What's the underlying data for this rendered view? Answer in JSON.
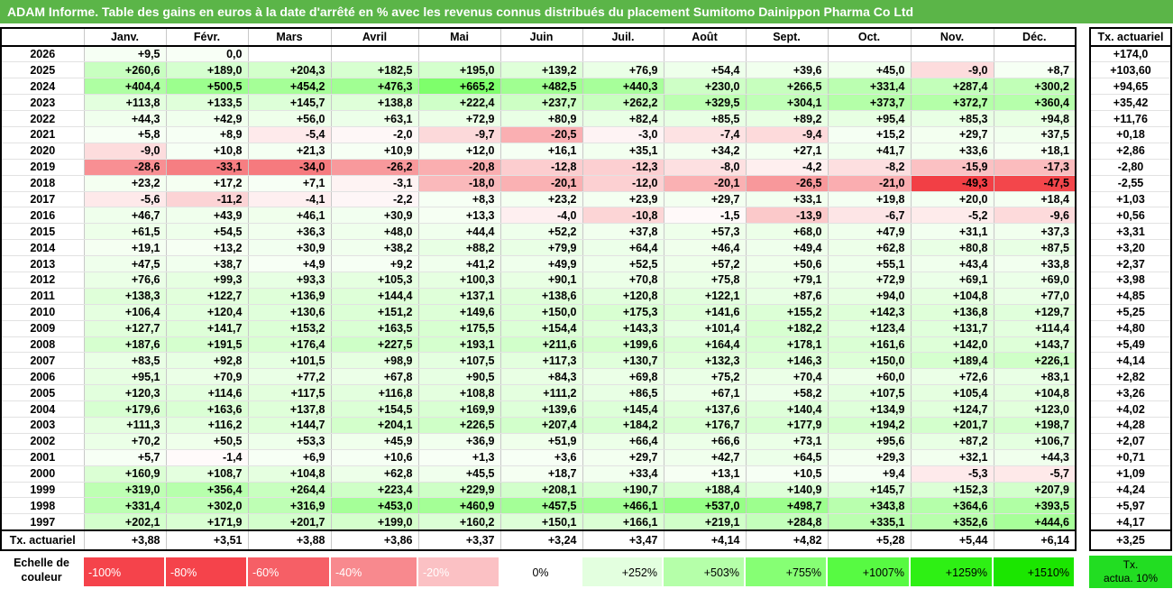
{
  "title": "ADAM Informe. Table des gains en euros à la date d'arrêté en % avec les revenus connus distribués du placement Sumitomo Dainippon Pharma Co Ltd",
  "months": [
    "Janv.",
    "Févr.",
    "Mars",
    "Avril",
    "Mai",
    "Juin",
    "Juil.",
    "Août",
    "Sept.",
    "Oct.",
    "Nov.",
    "Déc."
  ],
  "side_header": "Tx. actuariel",
  "rows": [
    {
      "year": "2026",
      "values": [
        "+9,5",
        "0,0",
        "",
        "",
        "",
        "",
        "",
        "",
        "",
        "",
        "",
        ""
      ],
      "actuarial": "+174,0"
    },
    {
      "year": "2025",
      "values": [
        "+260,6",
        "+189,0",
        "+204,3",
        "+182,5",
        "+195,0",
        "+139,2",
        "+76,9",
        "+54,4",
        "+39,6",
        "+45,0",
        "-9,0",
        "+8,7"
      ],
      "actuarial": "+103,60"
    },
    {
      "year": "2024",
      "values": [
        "+404,4",
        "+500,5",
        "+454,2",
        "+476,3",
        "+665,2",
        "+482,5",
        "+440,3",
        "+230,0",
        "+266,5",
        "+331,4",
        "+287,4",
        "+300,2"
      ],
      "actuarial": "+94,65"
    },
    {
      "year": "2023",
      "values": [
        "+113,8",
        "+133,5",
        "+145,7",
        "+138,8",
        "+222,4",
        "+237,7",
        "+262,2",
        "+329,5",
        "+304,1",
        "+373,7",
        "+372,7",
        "+360,4"
      ],
      "actuarial": "+35,42"
    },
    {
      "year": "2022",
      "values": [
        "+44,3",
        "+42,9",
        "+56,0",
        "+63,1",
        "+72,9",
        "+80,9",
        "+82,4",
        "+85,5",
        "+89,2",
        "+95,4",
        "+85,3",
        "+94,8"
      ],
      "actuarial": "+11,76"
    },
    {
      "year": "2021",
      "values": [
        "+5,8",
        "+8,9",
        "-5,4",
        "-2,0",
        "-9,7",
        "-20,5",
        "-3,0",
        "-7,4",
        "-9,4",
        "+15,2",
        "+29,7",
        "+37,5"
      ],
      "actuarial": "+0,18"
    },
    {
      "year": "2020",
      "values": [
        "-9,0",
        "+10,8",
        "+21,3",
        "+10,9",
        "+12,0",
        "+16,1",
        "+35,1",
        "+34,2",
        "+27,1",
        "+41,7",
        "+33,6",
        "+18,1"
      ],
      "actuarial": "+2,86"
    },
    {
      "year": "2019",
      "values": [
        "-28,6",
        "-33,1",
        "-34,0",
        "-26,2",
        "-20,8",
        "-12,8",
        "-12,3",
        "-8,0",
        "-4,2",
        "-8,2",
        "-15,9",
        "-17,3"
      ],
      "actuarial": "-2,80"
    },
    {
      "year": "2018",
      "values": [
        "+23,2",
        "+17,2",
        "+7,1",
        "-3,1",
        "-18,0",
        "-20,1",
        "-12,0",
        "-20,1",
        "-26,5",
        "-21,0",
        "-49,3",
        "-47,5"
      ],
      "actuarial": "-2,55"
    },
    {
      "year": "2017",
      "values": [
        "-5,6",
        "-11,2",
        "-4,1",
        "-2,2",
        "+8,3",
        "+23,2",
        "+23,9",
        "+29,7",
        "+33,1",
        "+19,8",
        "+20,0",
        "+18,4"
      ],
      "actuarial": "+1,03"
    },
    {
      "year": "2016",
      "values": [
        "+46,7",
        "+43,9",
        "+46,1",
        "+30,9",
        "+13,3",
        "-4,0",
        "-10,8",
        "-1,5",
        "-13,9",
        "-6,7",
        "-5,2",
        "-9,6"
      ],
      "actuarial": "+0,56"
    },
    {
      "year": "2015",
      "values": [
        "+61,5",
        "+54,5",
        "+36,3",
        "+48,0",
        "+44,4",
        "+52,2",
        "+37,8",
        "+57,3",
        "+68,0",
        "+47,9",
        "+31,1",
        "+37,3"
      ],
      "actuarial": "+3,31"
    },
    {
      "year": "2014",
      "values": [
        "+19,1",
        "+13,2",
        "+30,9",
        "+38,2",
        "+88,2",
        "+79,9",
        "+64,4",
        "+46,4",
        "+49,4",
        "+62,8",
        "+80,8",
        "+87,5"
      ],
      "actuarial": "+3,20"
    },
    {
      "year": "2013",
      "values": [
        "+47,5",
        "+38,7",
        "+4,9",
        "+9,2",
        "+41,2",
        "+49,9",
        "+52,5",
        "+57,2",
        "+50,6",
        "+55,1",
        "+43,4",
        "+33,8"
      ],
      "actuarial": "+2,37"
    },
    {
      "year": "2012",
      "values": [
        "+76,6",
        "+99,3",
        "+93,3",
        "+105,3",
        "+100,3",
        "+90,1",
        "+70,8",
        "+75,8",
        "+79,1",
        "+72,9",
        "+69,1",
        "+69,0"
      ],
      "actuarial": "+3,98"
    },
    {
      "year": "2011",
      "values": [
        "+138,3",
        "+122,7",
        "+136,9",
        "+144,4",
        "+137,1",
        "+138,6",
        "+120,8",
        "+122,1",
        "+87,6",
        "+94,0",
        "+104,8",
        "+77,0"
      ],
      "actuarial": "+4,85"
    },
    {
      "year": "2010",
      "values": [
        "+106,4",
        "+120,4",
        "+130,6",
        "+151,2",
        "+149,6",
        "+150,0",
        "+175,3",
        "+141,6",
        "+155,2",
        "+142,3",
        "+136,8",
        "+129,7"
      ],
      "actuarial": "+5,25"
    },
    {
      "year": "2009",
      "values": [
        "+127,7",
        "+141,7",
        "+153,2",
        "+163,5",
        "+175,5",
        "+154,4",
        "+143,3",
        "+101,4",
        "+182,2",
        "+123,4",
        "+131,7",
        "+114,4"
      ],
      "actuarial": "+4,80"
    },
    {
      "year": "2008",
      "values": [
        "+187,6",
        "+191,5",
        "+176,4",
        "+227,5",
        "+193,1",
        "+211,6",
        "+199,6",
        "+164,4",
        "+178,1",
        "+161,6",
        "+142,0",
        "+143,7"
      ],
      "actuarial": "+5,49"
    },
    {
      "year": "2007",
      "values": [
        "+83,5",
        "+92,8",
        "+101,5",
        "+98,9",
        "+107,5",
        "+117,3",
        "+130,7",
        "+132,3",
        "+146,3",
        "+150,0",
        "+189,4",
        "+226,1"
      ],
      "actuarial": "+4,14"
    },
    {
      "year": "2006",
      "values": [
        "+95,1",
        "+70,9",
        "+77,2",
        "+67,8",
        "+90,5",
        "+84,3",
        "+69,8",
        "+75,2",
        "+70,4",
        "+60,0",
        "+72,6",
        "+83,1"
      ],
      "actuarial": "+2,82"
    },
    {
      "year": "2005",
      "values": [
        "+120,3",
        "+114,6",
        "+117,5",
        "+116,8",
        "+108,8",
        "+111,2",
        "+86,5",
        "+67,1",
        "+58,2",
        "+107,5",
        "+105,4",
        "+104,8"
      ],
      "actuarial": "+3,26"
    },
    {
      "year": "2004",
      "values": [
        "+179,6",
        "+163,6",
        "+137,8",
        "+154,5",
        "+169,9",
        "+139,6",
        "+145,4",
        "+137,6",
        "+140,4",
        "+134,9",
        "+124,7",
        "+123,0"
      ],
      "actuarial": "+4,02"
    },
    {
      "year": "2003",
      "values": [
        "+111,3",
        "+116,2",
        "+144,7",
        "+204,1",
        "+226,5",
        "+207,4",
        "+184,2",
        "+176,7",
        "+177,9",
        "+194,2",
        "+201,7",
        "+198,7"
      ],
      "actuarial": "+4,28"
    },
    {
      "year": "2002",
      "values": [
        "+70,2",
        "+50,5",
        "+53,3",
        "+45,9",
        "+36,9",
        "+51,9",
        "+66,4",
        "+66,6",
        "+73,1",
        "+95,6",
        "+87,2",
        "+106,7"
      ],
      "actuarial": "+2,07"
    },
    {
      "year": "2001",
      "values": [
        "+5,7",
        "-1,4",
        "+6,9",
        "+10,6",
        "+1,3",
        "+3,6",
        "+29,7",
        "+42,7",
        "+64,5",
        "+29,3",
        "+32,1",
        "+44,3"
      ],
      "actuarial": "+0,71"
    },
    {
      "year": "2000",
      "values": [
        "+160,9",
        "+108,7",
        "+104,8",
        "+62,8",
        "+45,5",
        "+18,7",
        "+33,4",
        "+13,1",
        "+10,5",
        "+9,4",
        "-5,3",
        "-5,7"
      ],
      "actuarial": "+1,09"
    },
    {
      "year": "1999",
      "values": [
        "+319,0",
        "+356,4",
        "+264,4",
        "+223,4",
        "+229,9",
        "+208,1",
        "+190,7",
        "+188,4",
        "+140,9",
        "+145,7",
        "+152,3",
        "+207,9"
      ],
      "actuarial": "+4,24"
    },
    {
      "year": "1998",
      "values": [
        "+331,4",
        "+302,0",
        "+316,9",
        "+453,0",
        "+460,9",
        "+457,5",
        "+466,1",
        "+537,0",
        "+498,7",
        "+343,8",
        "+364,6",
        "+393,5"
      ],
      "actuarial": "+5,97"
    },
    {
      "year": "1997",
      "values": [
        "+202,1",
        "+171,9",
        "+201,7",
        "+199,0",
        "+160,2",
        "+150,1",
        "+166,1",
        "+219,1",
        "+284,8",
        "+335,1",
        "+352,6",
        "+444,6"
      ],
      "actuarial": "+4,17"
    }
  ],
  "footer": {
    "label": "Tx. actuariel",
    "values": [
      "+3,88",
      "+3,51",
      "+3,88",
      "+3,86",
      "+3,37",
      "+3,24",
      "+3,47",
      "+4,14",
      "+4,82",
      "+5,28",
      "+5,44",
      "+6,14"
    ],
    "actuarial": "+3,25"
  },
  "legend": {
    "label_line1": "Echelle de",
    "label_line2": "couleur",
    "cells": [
      {
        "text": "-100%",
        "color": "#f5434b",
        "text_color": "#ffffff",
        "align": "left"
      },
      {
        "text": "-80%",
        "color": "#f5434b",
        "text_color": "#ffffff",
        "align": "left"
      },
      {
        "text": "-60%",
        "color": "#f65f66",
        "text_color": "#ffffff",
        "align": "left"
      },
      {
        "text": "-40%",
        "color": "#f8898e",
        "text_color": "#ffffff",
        "align": "left"
      },
      {
        "text": "-20%",
        "color": "#fbc1c4",
        "text_color": "#ffffff",
        "align": "left"
      },
      {
        "text": "0%",
        "color": "#ffffff",
        "text_color": "#000000",
        "align": "center"
      },
      {
        "text": "+252%",
        "color": "#e3ffdf",
        "text_color": "#000000",
        "align": "right"
      },
      {
        "text": "+503%",
        "color": "#b5ffa9",
        "text_color": "#000000",
        "align": "right"
      },
      {
        "text": "+755%",
        "color": "#86ff74",
        "text_color": "#000000",
        "align": "right"
      },
      {
        "text": "+1007%",
        "color": "#57fa42",
        "text_color": "#000000",
        "align": "right"
      },
      {
        "text": "+1259%",
        "color": "#2ef014",
        "text_color": "#000000",
        "align": "right"
      },
      {
        "text": "+1510%",
        "color": "#1be600",
        "text_color": "#000000",
        "align": "right"
      }
    ],
    "side_line1": "Tx.",
    "side_line2": "actua. 10%"
  },
  "colors": {
    "title_bar": "#5bb548",
    "side_legend": "#22dd22"
  }
}
